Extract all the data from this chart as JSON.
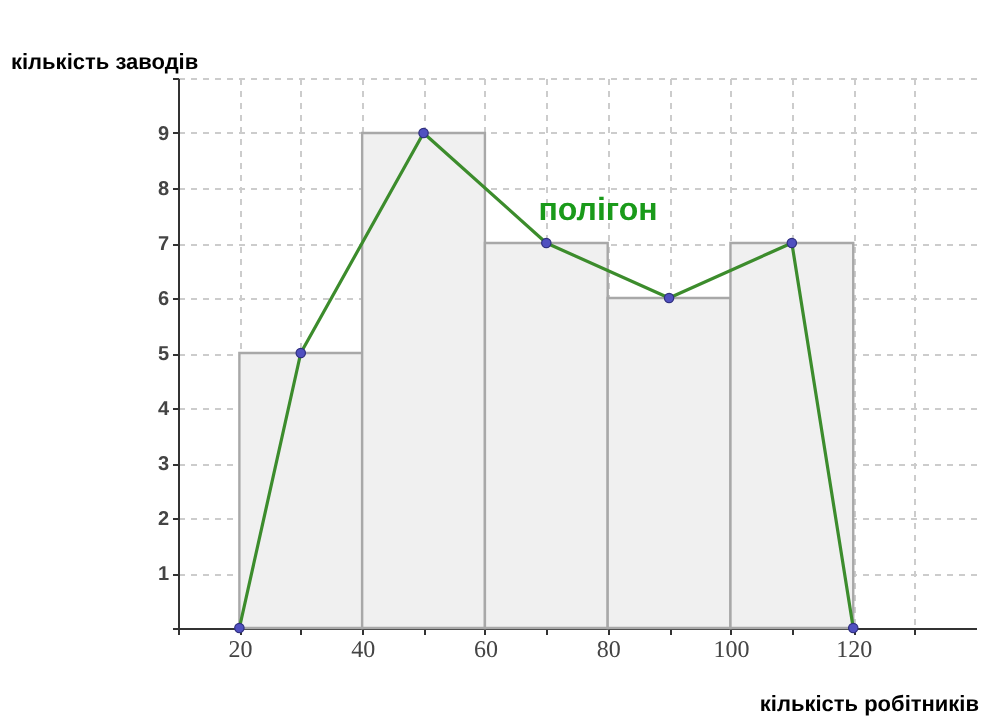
{
  "chart_data": {
    "type": "histogram",
    "xlabel": "кількість робітників",
    "ylabel": "кількість заводів",
    "bins": [
      20,
      40,
      60,
      80,
      100,
      120
    ],
    "values": [
      5,
      9,
      7,
      6,
      7
    ],
    "color": "#f0f0f0",
    "series": [
      {
        "type": "line",
        "x": [
          20,
          30,
          50,
          70,
          90,
          110,
          120
        ],
        "values": [
          0,
          5,
          9,
          7,
          6,
          7,
          0
        ],
        "color": "#3c8c2c",
        "marker": "circle",
        "line_style": "solid"
      }
    ],
    "annotations": [
      "полігон"
    ],
    "xlim": [
      10,
      140
    ],
    "ylim": [
      0,
      10
    ],
    "xticks": [
      {
        "value": 10,
        "label": null
      },
      20,
      {
        "value": 30,
        "label": null
      },
      40,
      {
        "value": 50,
        "label": null
      },
      60,
      {
        "value": 70,
        "label": null
      },
      80,
      {
        "value": 90,
        "label": null
      },
      100,
      {
        "value": 110,
        "label": null
      },
      120,
      {
        "value": 130,
        "label": null
      }
    ],
    "yticks": [
      {
        "value": 0,
        "label": null
      },
      1,
      2,
      3,
      4,
      5,
      6,
      7,
      8,
      9,
      {
        "value": 10,
        "label": null
      }
    ],
    "grid": true
  }
}
